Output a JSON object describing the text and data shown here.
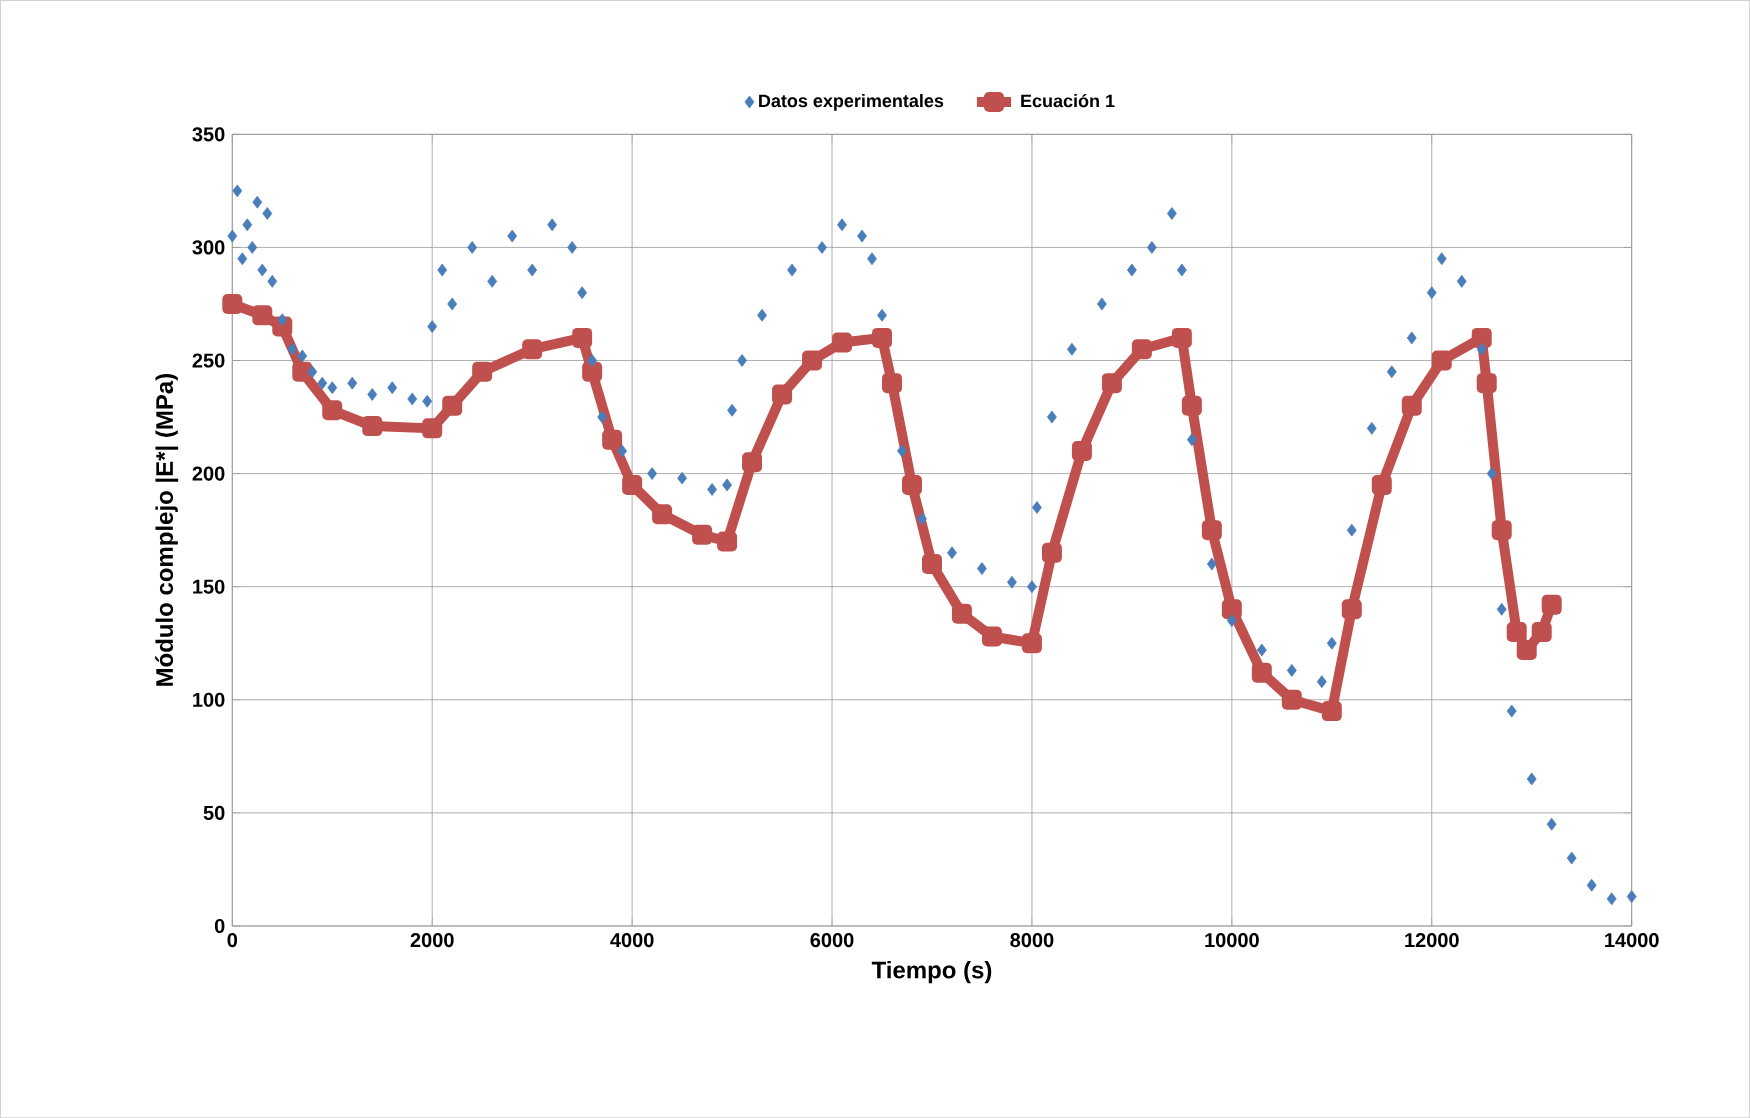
{
  "chart_data": {
    "type": "scatter",
    "xlabel": "Tiempo (s)",
    "ylabel": "Módulo complejo |E*| (MPa)",
    "xlim": [
      0,
      14000
    ],
    "xticks": [
      0,
      2000,
      4000,
      6000,
      8000,
      10000,
      12000,
      14000
    ],
    "ylim": [
      0,
      350
    ],
    "yticks": [
      0,
      50,
      100,
      150,
      200,
      250,
      300,
      350
    ],
    "grid": true,
    "legend": "top",
    "series": [
      {
        "name": "Datos experimentales",
        "marker": "diamond",
        "color": "#4a7ebb",
        "x": [
          0,
          50,
          100,
          150,
          200,
          250,
          300,
          350,
          400,
          500,
          600,
          700,
          800,
          900,
          1000,
          1200,
          1400,
          1600,
          1800,
          1950,
          2000,
          2100,
          2200,
          2400,
          2600,
          2800,
          3000,
          3200,
          3400,
          3500,
          3600,
          3700,
          3900,
          4200,
          4500,
          4800,
          4950,
          5000,
          5100,
          5300,
          5600,
          5900,
          6100,
          6300,
          6400,
          6500,
          6700,
          6900,
          7200,
          7500,
          7800,
          8000,
          8050,
          8200,
          8400,
          8700,
          9000,
          9200,
          9400,
          9500,
          9600,
          9800,
          10000,
          10300,
          10600,
          10900,
          11000,
          11200,
          11400,
          11600,
          11800,
          12000,
          12100,
          12300,
          12500,
          12600,
          12700,
          12800,
          13000,
          13200,
          13400,
          13600,
          13800,
          14000
        ],
        "values": [
          305,
          325,
          295,
          310,
          300,
          320,
          290,
          315,
          285,
          268,
          255,
          252,
          245,
          240,
          238,
          240,
          235,
          238,
          233,
          232,
          265,
          290,
          275,
          300,
          285,
          305,
          290,
          310,
          300,
          280,
          250,
          225,
          210,
          200,
          198,
          193,
          195,
          228,
          250,
          270,
          290,
          300,
          310,
          305,
          295,
          270,
          210,
          180,
          165,
          158,
          152,
          150,
          185,
          225,
          255,
          275,
          290,
          300,
          315,
          290,
          215,
          160,
          135,
          122,
          113,
          108,
          125,
          175,
          220,
          245,
          260,
          280,
          295,
          285,
          255,
          200,
          140,
          95,
          65,
          45,
          30,
          18,
          12,
          13
        ]
      },
      {
        "name": "Ecuación 1",
        "type": "line",
        "marker": "square",
        "color": "#c0504d",
        "x": [
          0,
          300,
          500,
          700,
          1000,
          1400,
          2000,
          2200,
          2500,
          3000,
          3500,
          3600,
          3800,
          4000,
          4300,
          4700,
          4950,
          5200,
          5500,
          5800,
          6100,
          6500,
          6600,
          6800,
          7000,
          7300,
          7600,
          8000,
          8200,
          8500,
          8800,
          9100,
          9500,
          9600,
          9800,
          10000,
          10300,
          10600,
          11000,
          11200,
          11500,
          11800,
          12100,
          12500,
          12550,
          12700,
          12850,
          12950,
          13100,
          13200
        ],
        "values": [
          275,
          270,
          265,
          245,
          228,
          221,
          220,
          230,
          245,
          255,
          260,
          245,
          215,
          195,
          182,
          173,
          170,
          205,
          235,
          250,
          258,
          260,
          240,
          195,
          160,
          138,
          128,
          125,
          165,
          210,
          240,
          255,
          260,
          230,
          175,
          140,
          112,
          100,
          95,
          140,
          195,
          230,
          250,
          260,
          240,
          175,
          130,
          122,
          130,
          142
        ]
      }
    ]
  }
}
